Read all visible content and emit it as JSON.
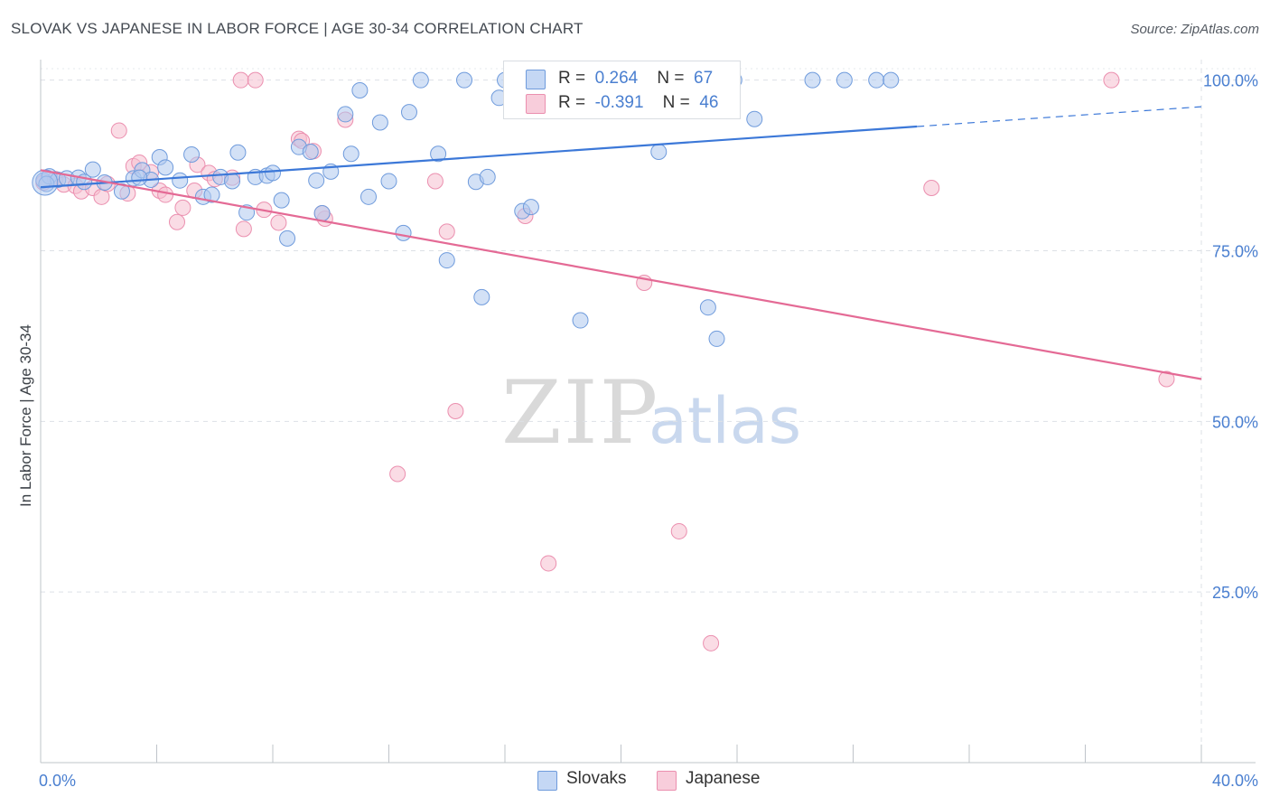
{
  "title": "SLOVAK VS JAPANESE IN LABOR FORCE | AGE 30-34 CORRELATION CHART",
  "source": "Source: ZipAtlas.com",
  "watermark": {
    "zip": "ZIP",
    "atlas": "atlas"
  },
  "colors": {
    "slovaks_fill": "#aec8ef",
    "slovaks_stroke": "#6f9bdc",
    "slovaks_line": "#3c78d8",
    "japanese_fill": "#f6bfd0",
    "japanese_stroke": "#eb8faf",
    "japanese_line": "#e46a95",
    "tick_label": "#4a7fd0",
    "grid": "#dde1e6"
  },
  "legend_top": {
    "rows": [
      {
        "r_label": "R =",
        "r_value": "0.264",
        "n_label": "N =",
        "n_value": "67"
      },
      {
        "r_label": "R =",
        "r_value": "-0.391",
        "n_label": "N =",
        "n_value": "46"
      }
    ]
  },
  "legend_bottom": {
    "slovaks": "Slovaks",
    "japanese": "Japanese"
  },
  "chart_data": {
    "type": "scatter",
    "title": "SLOVAK VS JAPANESE IN LABOR FORCE | AGE 30-34 CORRELATION CHART",
    "xlabel": "",
    "ylabel": "In Labor Force | Age 30-34",
    "xlim": [
      0,
      40
    ],
    "ylim": [
      0,
      103
    ],
    "x_tick_labels": [
      "0.0%",
      "40.0%"
    ],
    "y_ticks": [
      25,
      50,
      75,
      100
    ],
    "y_tick_labels": [
      "25.0%",
      "50.0%",
      "75.0%",
      "100.0%"
    ],
    "grid": true,
    "legend_position": "top-center",
    "series": [
      {
        "name": "Slovaks",
        "r": 0.264,
        "n": 67,
        "trend": {
          "x": [
            0,
            30.2
          ],
          "y": [
            84.3,
            93.2
          ],
          "dashed_to": {
            "x": 40,
            "y": 96.1
          }
        },
        "points": [
          [
            0.1,
            85.3
          ],
          [
            0.3,
            85.9
          ],
          [
            0.6,
            85.4
          ],
          [
            0.9,
            85.6
          ],
          [
            1.3,
            85.7
          ],
          [
            1.5,
            85.1
          ],
          [
            1.8,
            86.9
          ],
          [
            2.2,
            85.0
          ],
          [
            2.8,
            83.7
          ],
          [
            3.2,
            85.6
          ],
          [
            3.5,
            86.8
          ],
          [
            3.8,
            85.4
          ],
          [
            4.1,
            88.7
          ],
          [
            4.3,
            87.2
          ],
          [
            4.8,
            85.3
          ],
          [
            5.2,
            89.1
          ],
          [
            5.6,
            82.9
          ],
          [
            5.9,
            83.2
          ],
          [
            6.2,
            85.8
          ],
          [
            6.6,
            85.2
          ],
          [
            6.8,
            89.4
          ],
          [
            7.1,
            80.6
          ],
          [
            7.4,
            85.8
          ],
          [
            7.8,
            86.0
          ],
          [
            8.0,
            86.4
          ],
          [
            8.3,
            82.4
          ],
          [
            8.5,
            76.8
          ],
          [
            8.9,
            90.2
          ],
          [
            9.3,
            89.5
          ],
          [
            9.5,
            85.3
          ],
          [
            9.7,
            80.5
          ],
          [
            10.0,
            86.6
          ],
          [
            10.5,
            95.0
          ],
          [
            10.7,
            89.2
          ],
          [
            11.0,
            98.5
          ],
          [
            11.3,
            82.9
          ],
          [
            11.7,
            93.8
          ],
          [
            12.0,
            85.2
          ],
          [
            12.5,
            77.6
          ],
          [
            12.7,
            95.3
          ],
          [
            13.1,
            100.0
          ],
          [
            13.7,
            89.2
          ],
          [
            14.0,
            73.6
          ],
          [
            14.6,
            100.0
          ],
          [
            15.0,
            85.1
          ],
          [
            15.4,
            85.8
          ],
          [
            15.2,
            68.2
          ],
          [
            15.8,
            97.4
          ],
          [
            16.0,
            100.0
          ],
          [
            16.6,
            80.8
          ],
          [
            16.9,
            81.4
          ],
          [
            17.1,
            100.0
          ],
          [
            18.6,
            64.8
          ],
          [
            20.5,
            100.0
          ],
          [
            21.3,
            89.5
          ],
          [
            21.6,
            100.0
          ],
          [
            22.4,
            100.0
          ],
          [
            23.0,
            66.7
          ],
          [
            23.3,
            62.1
          ],
          [
            23.9,
            100.0
          ],
          [
            24.6,
            94.3
          ],
          [
            26.6,
            100.0
          ],
          [
            27.7,
            100.0
          ],
          [
            28.8,
            100.0
          ],
          [
            29.3,
            100.0
          ],
          [
            0.2,
            84.8
          ],
          [
            3.4,
            85.7
          ]
        ]
      },
      {
        "name": "Japanese",
        "r": -0.391,
        "n": 46,
        "trend": {
          "x": [
            0,
            40
          ],
          "y": [
            86.8,
            56.2
          ]
        },
        "points": [
          [
            0.1,
            85.0
          ],
          [
            0.5,
            85.5
          ],
          [
            0.8,
            84.7
          ],
          [
            1.2,
            84.5
          ],
          [
            1.4,
            83.7
          ],
          [
            1.8,
            84.2
          ],
          [
            2.1,
            82.9
          ],
          [
            2.3,
            84.8
          ],
          [
            2.7,
            92.6
          ],
          [
            3.0,
            83.4
          ],
          [
            3.2,
            87.4
          ],
          [
            3.4,
            87.9
          ],
          [
            3.8,
            86.5
          ],
          [
            4.1,
            83.8
          ],
          [
            4.3,
            83.2
          ],
          [
            4.7,
            79.2
          ],
          [
            4.9,
            81.3
          ],
          [
            5.3,
            83.8
          ],
          [
            5.4,
            87.6
          ],
          [
            5.8,
            86.4
          ],
          [
            6.0,
            85.5
          ],
          [
            6.6,
            85.7
          ],
          [
            7.0,
            78.2
          ],
          [
            6.9,
            100.0
          ],
          [
            7.4,
            100.0
          ],
          [
            7.7,
            81.0
          ],
          [
            8.2,
            79.1
          ],
          [
            8.9,
            91.4
          ],
          [
            9.0,
            91.1
          ],
          [
            9.4,
            89.6
          ],
          [
            9.8,
            79.7
          ],
          [
            10.5,
            94.2
          ],
          [
            13.6,
            85.2
          ],
          [
            14.0,
            77.8
          ],
          [
            14.3,
            51.5
          ],
          [
            12.3,
            42.3
          ],
          [
            16.7,
            80.1
          ],
          [
            17.2,
            100.0
          ],
          [
            17.5,
            29.2
          ],
          [
            20.8,
            70.3
          ],
          [
            22.0,
            33.9
          ],
          [
            23.1,
            17.5
          ],
          [
            30.7,
            84.2
          ],
          [
            36.9,
            100.0
          ],
          [
            38.8,
            56.2
          ],
          [
            9.7,
            80.5
          ]
        ]
      }
    ]
  }
}
